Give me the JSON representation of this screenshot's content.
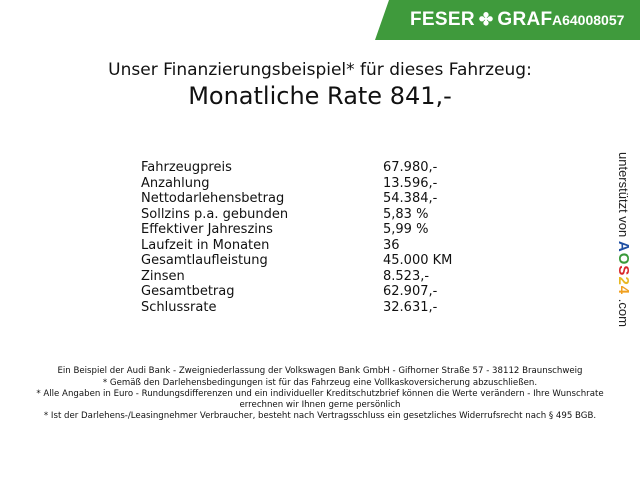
{
  "header": {
    "brand_left": "FESER",
    "brand_right": "GRAF",
    "dealer_code": "A64008057",
    "brand_color": "#3f9a3c"
  },
  "subtitle": "Unser Finanzierungsbeispiel* für dieses Fahrzeug:",
  "title": "Monatliche Rate 841,-",
  "rows": [
    {
      "label": "Fahrzeugpreis",
      "value": "67.980,-"
    },
    {
      "label": "Anzahlung",
      "value": "13.596,-"
    },
    {
      "label": "Nettodarlehensbetrag",
      "value": "54.384,-"
    },
    {
      "label": "Sollzins p.a. gebunden",
      "value": "5,83 %"
    },
    {
      "label": "Effektiver Jahreszins",
      "value": "5,99 %"
    },
    {
      "label": "Laufzeit in Monaten",
      "value": "36"
    },
    {
      "label": "Gesamtlaufleistung",
      "value": "45.000 KM"
    },
    {
      "label": "Zinsen",
      "value": "8.523,-"
    },
    {
      "label": "Gesamtbetrag",
      "value": "62.907,-"
    },
    {
      "label": "Schlussrate",
      "value": "32.631,-"
    }
  ],
  "side": {
    "prefix": "unterstützt von",
    "logo": [
      "A",
      "O",
      "S",
      "2",
      "4"
    ],
    "suffix": ".com"
  },
  "footer": [
    "Ein Beispiel der Audi Bank - Zweigniederlassung der Volkswagen Bank GmbH - Gifhorner Straße 57 - 38112 Braunschweig",
    "* Gemäß den Darlehensbedingungen ist für das Fahrzeug eine Vollkaskoversicherung abzuschließen.",
    "* Alle Angaben in Euro - Rundungsdifferenzen und ein individueller Kreditschutzbrief können die Werte verändern - Ihre Wunschrate errechnen wir Ihnen gerne persönlich",
    "* Ist der Darlehens-/Leasingnehmer Verbraucher, besteht nach Vertragsschluss ein gesetzliches Widerrufsrecht nach § 495 BGB."
  ]
}
